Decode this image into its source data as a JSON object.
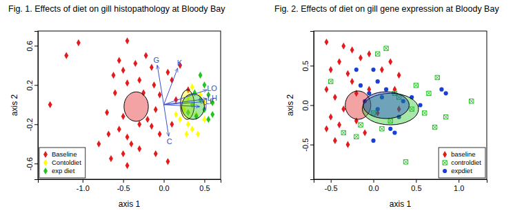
{
  "chart_data": [
    {
      "type": "scatter",
      "title": "Fig. 1. Effects of diet on gill histopathology at Bloody Bay",
      "xlabel": "axis 1",
      "ylabel": "axis 2",
      "xlim": [
        -1.55,
        0.7
      ],
      "ylim": [
        -0.76,
        0.75
      ],
      "xticks": [
        {
          "value": -1,
          "label": "-1.0"
        },
        {
          "value": -0.5,
          "label": "-0.5"
        },
        {
          "value": 0,
          "label": "0.0"
        },
        {
          "value": 0.5,
          "label": "0.5"
        }
      ],
      "yticks": [
        -0.6,
        -0.2,
        0.2,
        0.6
      ],
      "legend": "bottomleft",
      "series": [
        {
          "name": "Baseline",
          "color": "#e41a1c",
          "marker": "diamond",
          "x": [
            -1.4,
            -1.2,
            -1.05,
            -0.45,
            -0.55,
            -0.5,
            -0.62,
            -0.35,
            -0.22,
            -0.15,
            -0.3,
            -0.45,
            -0.6,
            -0.25,
            -0.12,
            -0.05,
            -0.7,
            -0.5,
            -0.55,
            -0.68,
            -0.45,
            -0.4,
            -0.3,
            -0.5,
            -0.65,
            -0.45,
            -0.1,
            -0.05,
            -0.15,
            -0.2,
            -0.1,
            0.1,
            0.15,
            0.1,
            0.2,
            0.05,
            -0.3,
            -0.8,
            0.3,
            0.05
          ],
          "y": [
            0.0,
            0.5,
            0.63,
            0.65,
            0.45,
            0.35,
            0.3,
            0.42,
            0.5,
            0.38,
            0.25,
            0.22,
            0.12,
            0.12,
            0.2,
            0.1,
            -0.08,
            -0.12,
            -0.25,
            -0.3,
            -0.33,
            -0.4,
            -0.45,
            -0.5,
            -0.55,
            -0.62,
            -0.5,
            -0.3,
            -0.22,
            -0.15,
            -0.05,
            -0.2,
            0.05,
            0.25,
            0.4,
            0.33,
            -0.2,
            -0.4,
            0.15,
            -0.58
          ],
          "ellipse": {
            "x": -0.34,
            "y": -0.02,
            "rx": 0.15,
            "ry": 0.15
          }
        },
        {
          "name": "Contoldiet",
          "color": "#ffff00",
          "marker": "diamond",
          "x": [
            0.2,
            0.3,
            0.35,
            0.25,
            0.4,
            0.3,
            0.45,
            0.5,
            0.15,
            0.35,
            0.28,
            0.5,
            0.42
          ],
          "y": [
            -0.15,
            -0.2,
            -0.25,
            -0.05,
            -0.1,
            0.05,
            0.1,
            -0.15,
            -0.1,
            0.18,
            -0.3,
            0.02,
            -0.3
          ],
          "ellipse": {
            "x": 0.29,
            "y": 0.0,
            "rx": 0.085,
            "ry": 0.15
          }
        },
        {
          "name": "exp diet",
          "color": "#22c322",
          "marker": "diamond",
          "x": [
            0.35,
            0.45,
            0.5,
            0.55,
            0.4,
            0.6,
            0.3,
            0.55,
            0.5,
            0.45,
            0.6,
            0.38
          ],
          "y": [
            0.0,
            0.05,
            -0.05,
            0.1,
            -0.12,
            0.02,
            -0.08,
            -0.15,
            0.2,
            0.3,
            -0.1,
            0.12
          ],
          "ellipse": {
            "x": 0.36,
            "y": -0.02,
            "rx": 0.14,
            "ry": 0.13
          }
        }
      ],
      "vectors": {
        "color": "#3a4fcc",
        "labels": [
          "G",
          "K",
          "C",
          "LO",
          "LH",
          "LF",
          "J"
        ],
        "x": [
          -0.08,
          0.17,
          0.06,
          0.53,
          0.53,
          0.5,
          0.44
        ],
        "y": [
          0.4,
          0.37,
          -0.32,
          0.15,
          0.06,
          0.03,
          -0.02
        ]
      }
    },
    {
      "type": "scatter",
      "title": "Fig. 2. Effects of diet on gill gene expression at Bloody Bay",
      "xlabel": "axis 1",
      "ylabel": "axis 2",
      "xlim": [
        -0.7,
        1.33
      ],
      "ylim": [
        -0.94,
        0.94
      ],
      "xticks": [
        -0.5,
        {
          "value": 0,
          "label": "0.0"
        },
        0.5,
        {
          "value": 1,
          "label": "1.0"
        }
      ],
      "yticks": [
        -0.5,
        {
          "value": 0,
          "label": "0.0"
        },
        0.5
      ],
      "legend": "bottomright",
      "series": [
        {
          "name": "baseline",
          "color": "#e41a1c",
          "marker": "diamond",
          "x": [
            -0.55,
            -0.35,
            -0.25,
            -0.15,
            -0.05,
            0.2,
            -0.4,
            -0.5,
            -0.3,
            0.1,
            0.3,
            0.25,
            -0.55,
            -0.45,
            -0.2,
            -0.35,
            -0.5,
            -0.55,
            -0.45,
            -0.3,
            -0.4,
            -0.2,
            -0.1,
            0.05,
            -0.25,
            0.3,
            -0.05
          ],
          "y": [
            0.8,
            0.75,
            0.7,
            0.6,
            0.65,
            0.55,
            0.55,
            0.45,
            0.4,
            0.45,
            0.38,
            0.2,
            0.2,
            0.1,
            0.15,
            -0.05,
            -0.15,
            -0.3,
            -0.45,
            -0.5,
            -0.25,
            -0.2,
            -0.35,
            -0.1,
            0.3,
            -0.05,
            0.2
          ],
          "ellipse": {
            "x": -0.18,
            "y": 0.0,
            "rx": 0.15,
            "ry": 0.18
          }
        },
        {
          "name": "controldiet",
          "color": "#22c322",
          "marker": "square-cross",
          "x": [
            -0.5,
            0.05,
            0.15,
            -0.35,
            -0.2,
            -0.15,
            0.0,
            0.1,
            0.2,
            0.3,
            0.45,
            0.5,
            0.65,
            0.75,
            0.72,
            0.85,
            1.15,
            0.6,
            0.38,
            0.25
          ],
          "y": [
            0.3,
            0.65,
            0.72,
            -0.35,
            -0.4,
            -0.25,
            -0.1,
            -0.3,
            -0.2,
            0.1,
            -0.05,
            0.25,
            0.15,
            0.35,
            -0.28,
            -0.15,
            0.05,
            -0.1,
            -0.72,
            0.15
          ],
          "ellipse": {
            "x": 0.2,
            "y": -0.05,
            "rx": 0.33,
            "ry": 0.2
          }
        },
        {
          "name": "expdiet",
          "color": "#1a3fd6",
          "marker": "circle",
          "x": [
            -0.15,
            -0.05,
            0.0,
            0.05,
            -0.1,
            0.1,
            0.15,
            0.2,
            0.25,
            0.0,
            0.35,
            0.45,
            0.55,
            0.8,
            0.85,
            0.05,
            0.3,
            -0.2
          ],
          "y": [
            0.25,
            0.15,
            0.45,
            0.3,
            0.05,
            0.1,
            0.2,
            -0.3,
            -0.35,
            -0.45,
            0.05,
            0.1,
            0.0,
            0.2,
            0.15,
            -0.05,
            -0.15,
            0.45
          ],
          "ellipse": {
            "x": 0.15,
            "y": 0.0,
            "rx": 0.27,
            "ry": 0.17
          }
        }
      ]
    }
  ]
}
